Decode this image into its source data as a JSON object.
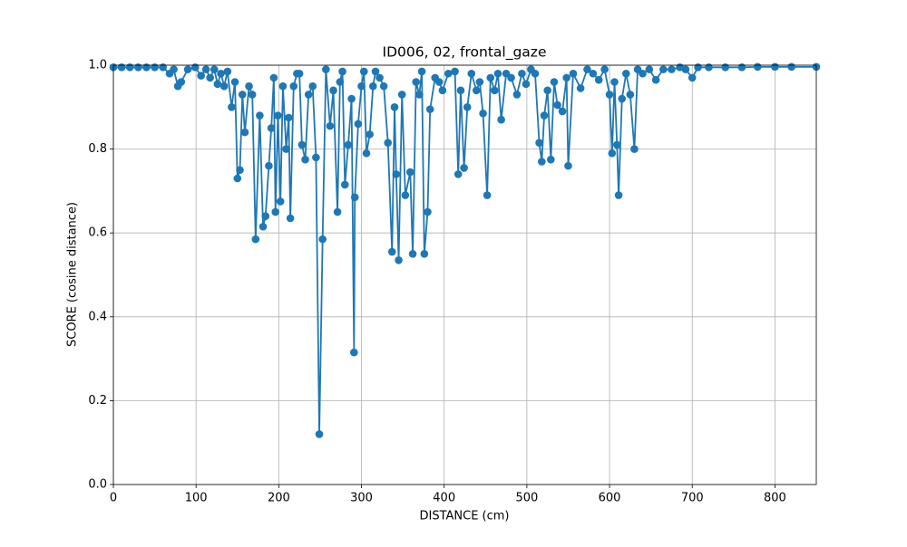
{
  "chart_data": {
    "type": "line",
    "title": "ID006, 02, frontal_gaze",
    "x_label": "DISTANCE (cm)",
    "y_label": "SCORE (cosine distance)",
    "xlim": [
      0,
      850
    ],
    "ylim": [
      0,
      1
    ],
    "xticks": [
      0,
      100,
      200,
      300,
      400,
      500,
      600,
      700,
      800
    ],
    "yticks": [
      {
        "value": 0,
        "label": "0.0"
      },
      {
        "value": 0.2,
        "label": "0.2"
      },
      {
        "value": 0.4,
        "label": "0.4"
      },
      {
        "value": 0.6,
        "label": "0.6"
      },
      {
        "value": 0.8,
        "label": "0.8"
      },
      {
        "value": 1,
        "label": "1.0"
      }
    ],
    "grid": true,
    "series": [
      {
        "color": "#1f77b4",
        "x": [
          0,
          10,
          20,
          30,
          40,
          50,
          60,
          68,
          73,
          78,
          82,
          90,
          99,
          106,
          112,
          117,
          122,
          126,
          130,
          134,
          138,
          143,
          147,
          150,
          153,
          156,
          159,
          164,
          168,
          172,
          177,
          181,
          184,
          188,
          191,
          194,
          196,
          199,
          202,
          205,
          209,
          212,
          214,
          218,
          222,
          225,
          228,
          232,
          236,
          241,
          245,
          249,
          253,
          257,
          262,
          266,
          271,
          274,
          277,
          280,
          284,
          288,
          291,
          292,
          296,
          300,
          303,
          306,
          310,
          314,
          317,
          322,
          327,
          332,
          337,
          340,
          342,
          345,
          349,
          353,
          359,
          362,
          366,
          370,
          373,
          376,
          380,
          383,
          389,
          394,
          398,
          405,
          413,
          417,
          420,
          424,
          428,
          433,
          439,
          443,
          447,
          452,
          456,
          461,
          465,
          469,
          475,
          481,
          488,
          494,
          499,
          505,
          510,
          515,
          518,
          521,
          525,
          529,
          533,
          537,
          543,
          548,
          550,
          556,
          565,
          573,
          580,
          587,
          594,
          600,
          603,
          606,
          609,
          611,
          615,
          620,
          625,
          630,
          634,
          640,
          648,
          656,
          665,
          675,
          685,
          692,
          700,
          707,
          720,
          740,
          760,
          779,
          800,
          820,
          850
        ],
        "values": [
          0.995,
          0.995,
          0.995,
          0.995,
          0.995,
          0.995,
          0.995,
          0.98,
          0.99,
          0.95,
          0.96,
          0.99,
          0.995,
          0.975,
          0.99,
          0.97,
          0.99,
          0.955,
          0.98,
          0.95,
          0.985,
          0.9,
          0.96,
          0.73,
          0.75,
          0.93,
          0.84,
          0.95,
          0.93,
          0.585,
          0.88,
          0.615,
          0.64,
          0.76,
          0.85,
          0.97,
          0.65,
          0.88,
          0.675,
          0.95,
          0.8,
          0.875,
          0.635,
          0.95,
          0.98,
          0.98,
          0.81,
          0.775,
          0.93,
          0.95,
          0.78,
          0.12,
          0.585,
          0.99,
          0.855,
          0.94,
          0.65,
          0.96,
          0.985,
          0.715,
          0.81,
          0.92,
          0.315,
          0.685,
          0.86,
          0.95,
          0.985,
          0.79,
          0.835,
          0.95,
          0.985,
          0.97,
          0.95,
          0.815,
          0.555,
          0.9,
          0.74,
          0.535,
          0.93,
          0.69,
          0.745,
          0.55,
          0.96,
          0.93,
          0.985,
          0.55,
          0.65,
          0.895,
          0.97,
          0.96,
          0.94,
          0.98,
          0.985,
          0.74,
          0.94,
          0.755,
          0.9,
          0.98,
          0.94,
          0.96,
          0.885,
          0.69,
          0.97,
          0.94,
          0.98,
          0.87,
          0.98,
          0.97,
          0.93,
          0.98,
          0.955,
          0.99,
          0.98,
          0.815,
          0.77,
          0.88,
          0.94,
          0.775,
          0.96,
          0.905,
          0.89,
          0.97,
          0.76,
          0.98,
          0.945,
          0.99,
          0.98,
          0.965,
          0.99,
          0.93,
          0.79,
          0.96,
          0.81,
          0.69,
          0.92,
          0.98,
          0.93,
          0.8,
          0.99,
          0.98,
          0.99,
          0.965,
          0.99,
          0.99,
          0.995,
          0.99,
          0.97,
          0.995,
          0.995,
          0.995,
          0.995,
          0.996,
          0.996,
          0.996,
          0.996
        ]
      }
    ]
  }
}
